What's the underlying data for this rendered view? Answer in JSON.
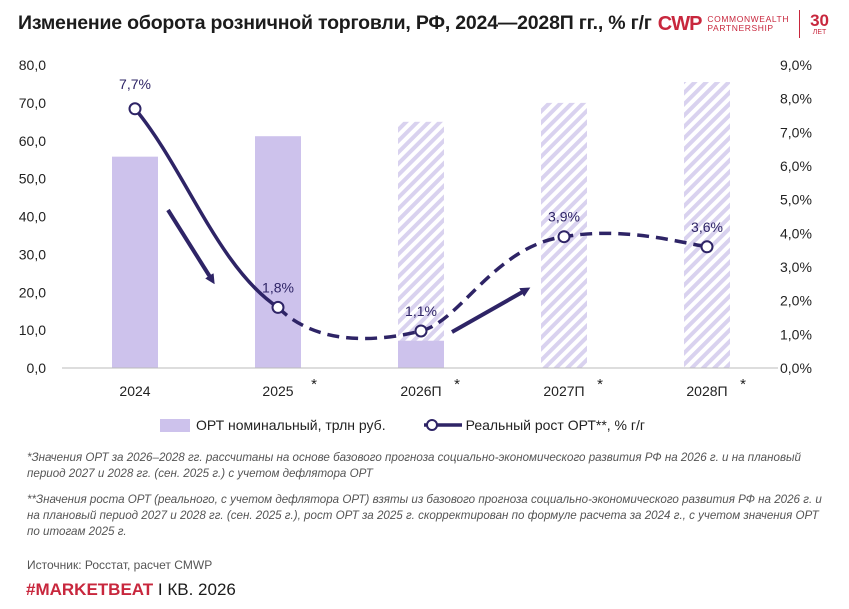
{
  "title": "Изменение оборота розничной торговли, РФ, 2024—2028П гг., % г/г",
  "logo": {
    "mark": "CWP",
    "line1": "COMMONWEALTH",
    "line2": "PARTNERSHIP",
    "years": "30",
    "years_label": "ЛЕТ"
  },
  "chart_data": {
    "type": "bar",
    "categories": [
      "2024",
      "2025",
      "2026П",
      "2027П",
      "2028П"
    ],
    "category_marks": [
      "",
      "*",
      "*",
      "*",
      "*"
    ],
    "series": [
      {
        "name": "ОРТ номинальный, трлн руб.",
        "type": "bar",
        "axis": "left",
        "values": [
          55.8,
          61.2,
          65.0,
          70.0,
          75.5
        ],
        "hatched": [
          false,
          false,
          true,
          true,
          true
        ],
        "solid_part": [
          55.8,
          61.2,
          7.2,
          0,
          0
        ]
      },
      {
        "name": "Реальный рост ОРТ**, % г/г",
        "type": "line",
        "axis": "right",
        "values": [
          7.7,
          1.8,
          1.1,
          3.9,
          3.6
        ],
        "labels": [
          "7,7%",
          "1,8%",
          "1,1%",
          "3,9%",
          "3,6%"
        ],
        "dashed_from_index": 1
      }
    ],
    "y_left": {
      "range": [
        0,
        80
      ],
      "ticks": [
        "0,0",
        "10,0",
        "20,0",
        "30,0",
        "40,0",
        "50,0",
        "60,0",
        "70,0",
        "80,0"
      ]
    },
    "y_right": {
      "range": [
        0,
        9
      ],
      "ticks": [
        "0,0%",
        "1,0%",
        "2,0%",
        "3,0%",
        "4,0%",
        "5,0%",
        "6,0%",
        "7,0%",
        "8,0%",
        "9,0%"
      ]
    },
    "grid": false,
    "legend_position": "bottom",
    "colors": {
      "bar": "#cdc2ec",
      "hatch": "#d9d2ef",
      "line": "#2e2466",
      "arrow": "#2e2466"
    }
  },
  "legend": {
    "bar_label": "ОРТ номинальный, трлн руб.",
    "line_label": "Реальный рост ОРТ**, % г/г"
  },
  "notes": {
    "note1": "*Значения ОРТ  за 2026–2028 гг. рассчитаны на основе базового прогноза социально-экономического развития РФ на 2026 г. и на плановый период 2027 и 2028 гг. (сен. 2025 г.) с учетом дефлятора ОРТ",
    "note2": "**Значения роста ОРТ (реального, с учетом дефлятора ОРТ) взяты из базового прогноза социально-экономического развития РФ на 2026 г. и на плановый период 2027 и 2028 гг. (сен. 2025 г.), рост ОРТ за 2025 г. скорректирован по формуле расчета за 2024 г., с учетом значения ОРТ по итогам 2025 г.",
    "source": "Источник: Росстат, расчет CMWP"
  },
  "footer": {
    "tag": "#MARKETBEAT",
    "period": " I КВ. 2026"
  }
}
